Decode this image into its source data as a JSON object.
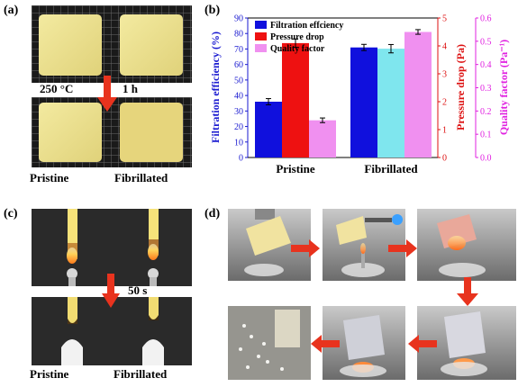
{
  "panel_a": {
    "label": "(a)",
    "annotation_temp": "250 °C",
    "annotation_time": "1 h",
    "caption_left": "Pristine",
    "caption_right": "Fibrillated"
  },
  "panel_b": {
    "label": "(b)"
  },
  "panel_c": {
    "label": "(c)",
    "annotation_time": "50 s",
    "caption_left": "Pristine",
    "caption_right": "Fibrillated"
  },
  "panel_d": {
    "label": "(d)"
  },
  "colors": {
    "filtration": "#1010dd",
    "pressure": "#ee1111",
    "pressure_fibrillated": "#7fe6ee",
    "quality": "#f090f0",
    "left_axis": "#1a1ad0",
    "right_axis": "#dd1010",
    "quality_axis": "#e020e0",
    "arrow": "#e8331e"
  },
  "chart_data": {
    "type": "bar",
    "categories": [
      "Pristine",
      "Fibrillated"
    ],
    "series": [
      {
        "name": "Filtration effciency",
        "axis": "left",
        "values": [
          36,
          71
        ],
        "errors": [
          2.0,
          2.0
        ]
      },
      {
        "name": "Pressure drop",
        "axis": "right",
        "values": [
          4.1,
          3.9
        ],
        "errors": [
          0.15,
          0.15
        ]
      },
      {
        "name": "Quality factor",
        "axis": "right2",
        "values": [
          0.16,
          0.54
        ],
        "errors": [
          0.01,
          0.01
        ]
      }
    ],
    "left_axis": {
      "label": "Filtration efficiency (%)",
      "ylim": [
        0,
        90
      ],
      "ticks": [
        "0",
        "10",
        "20",
        "30",
        "40",
        "50",
        "60",
        "70",
        "80",
        "90"
      ]
    },
    "right_axis": {
      "label": "Pressure drop (Pa)",
      "ylim": [
        0,
        5
      ],
      "ticks": [
        "0",
        "1",
        "2",
        "3",
        "4",
        "5"
      ]
    },
    "right2_axis": {
      "label": "Quality factor (Pa⁻¹)",
      "ylim": [
        0,
        0.6
      ],
      "ticks": [
        "0.0",
        "0.1",
        "0.2",
        "0.3",
        "0.4",
        "0.5",
        "0.6"
      ]
    },
    "legend_placement": "top-left",
    "grid": false
  }
}
